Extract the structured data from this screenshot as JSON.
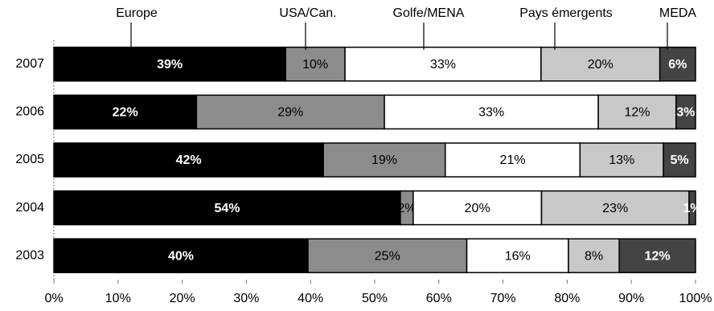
{
  "chart_data": {
    "type": "bar",
    "orientation": "horizontal",
    "stacking": "percent",
    "categories": [
      "2007",
      "2006",
      "2005",
      "2004",
      "2003"
    ],
    "series": [
      {
        "name": "Europe",
        "color": "#000000",
        "values": [
          39,
          22,
          42,
          54,
          40
        ],
        "value_labels": [
          "39%",
          "22%",
          "42%",
          "54%",
          "40%"
        ]
      },
      {
        "name": "USA/Can.",
        "color": "#8c8c8c",
        "values": [
          10,
          29,
          19,
          2,
          25
        ],
        "value_labels": [
          "10%",
          "29%",
          "19%",
          "2%",
          "25%"
        ]
      },
      {
        "name": "Golfe/MENA",
        "color": "#ffffff",
        "values": [
          33,
          33,
          21,
          20,
          16
        ],
        "value_labels": [
          "33%",
          "33%",
          "21%",
          "20%",
          "16%"
        ]
      },
      {
        "name": "Pays émergents",
        "color": "#c8c8c8",
        "values": [
          20,
          12,
          13,
          23,
          8
        ],
        "value_labels": [
          "20%",
          "12%",
          "13%",
          "23%",
          "8%"
        ]
      },
      {
        "name": "MEDA",
        "color": "#444444",
        "values": [
          6,
          3,
          5,
          1,
          12
        ],
        "value_labels": [
          "6%",
          "3%",
          "5%",
          "1%",
          "12%"
        ]
      }
    ],
    "xlim": [
      0,
      100
    ],
    "xticks": [
      {
        "value": 0,
        "label": "0%"
      },
      {
        "value": 10,
        "label": "10%"
      },
      {
        "value": 20,
        "label": "20%"
      },
      {
        "value": 30,
        "label": "30%"
      },
      {
        "value": 40,
        "label": "40%"
      },
      {
        "value": 50,
        "label": "50%"
      },
      {
        "value": 60,
        "label": "60%"
      },
      {
        "value": 70,
        "label": "70%"
      },
      {
        "value": 80,
        "label": "80%"
      },
      {
        "value": 90,
        "label": "90%"
      },
      {
        "value": 100,
        "label": "100%"
      }
    ]
  }
}
